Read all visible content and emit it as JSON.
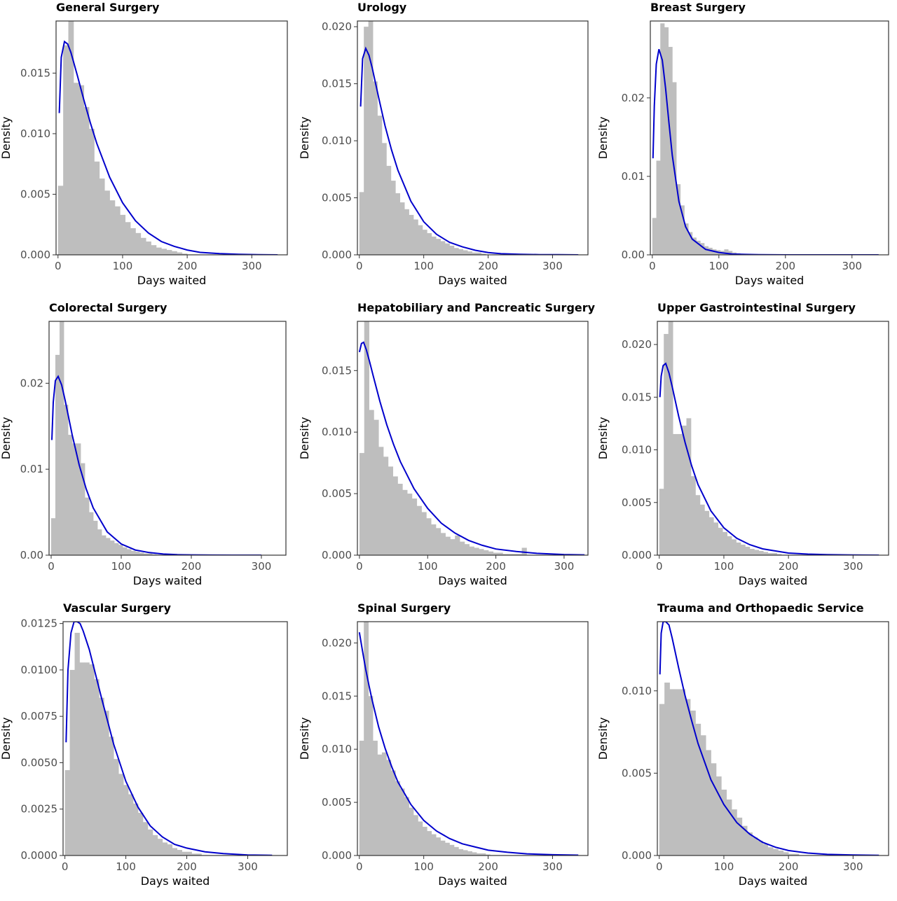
{
  "chart_data": [
    {
      "type": "histogram",
      "title": "General Surgery",
      "xlabel": "Days waited",
      "ylabel": "Density",
      "xlim": [
        -3,
        355
      ],
      "ylim": [
        0,
        0.0193
      ],
      "xticks": [
        0,
        100,
        200,
        300
      ],
      "yticks": [
        0.0,
        0.005,
        0.01,
        0.015
      ],
      "ytick_labels": [
        "0.000",
        "0.005",
        "0.010",
        "0.015"
      ],
      "bin_width": 8,
      "bin_start": 0,
      "histogram": [
        0.0057,
        0.0173,
        0.0195,
        0.0142,
        0.014,
        0.0122,
        0.0104,
        0.0077,
        0.0063,
        0.0053,
        0.0045,
        0.004,
        0.0033,
        0.0027,
        0.0022,
        0.0018,
        0.0014,
        0.0011,
        0.0008,
        0.0006,
        0.0005,
        0.0004,
        0.0003,
        0.0002,
        0.0001
      ],
      "fit_curve": {
        "x": [
          2,
          5,
          10,
          15,
          20,
          30,
          40,
          50,
          60,
          80,
          100,
          120,
          140,
          160,
          180,
          200,
          220,
          250,
          280,
          310,
          340
        ],
        "y": [
          0.0117,
          0.0163,
          0.0176,
          0.0174,
          0.0167,
          0.0148,
          0.0128,
          0.0109,
          0.0092,
          0.0064,
          0.0043,
          0.0028,
          0.0018,
          0.0011,
          0.0007,
          0.0004,
          0.0002,
          0.0001,
          4e-05,
          1e-05,
          0.0
        ]
      }
    },
    {
      "type": "histogram",
      "title": "Urology",
      "xlabel": "Days waited",
      "ylabel": "Density",
      "xlim": [
        -3,
        355
      ],
      "ylim": [
        0,
        0.0205
      ],
      "xticks": [
        0,
        100,
        200,
        300
      ],
      "yticks": [
        0.0,
        0.005,
        0.01,
        0.015,
        0.02
      ],
      "ytick_labels": [
        "0.000",
        "0.005",
        "0.010",
        "0.015",
        "0.020"
      ],
      "bin_width": 7,
      "bin_start": 0,
      "histogram": [
        0.0055,
        0.02,
        0.021,
        0.0152,
        0.0122,
        0.0098,
        0.0078,
        0.0065,
        0.0054,
        0.0046,
        0.004,
        0.0035,
        0.0031,
        0.0026,
        0.0022,
        0.0019,
        0.0016,
        0.0014,
        0.0012,
        0.001,
        0.0008,
        0.0006,
        0.0005,
        0.0004,
        0.0003,
        0.0002,
        0.0002,
        0.0001
      ],
      "fit_curve": {
        "x": [
          2,
          5,
          10,
          15,
          20,
          30,
          40,
          50,
          60,
          80,
          100,
          120,
          140,
          160,
          180,
          200,
          220,
          250,
          280,
          310,
          340
        ],
        "y": [
          0.013,
          0.0172,
          0.0181,
          0.0175,
          0.0164,
          0.0138,
          0.0113,
          0.0092,
          0.0074,
          0.0047,
          0.0029,
          0.0018,
          0.0011,
          0.0007,
          0.0004,
          0.0002,
          0.0001,
          5e-05,
          2e-05,
          1e-05,
          0.0
        ]
      }
    },
    {
      "type": "histogram",
      "title": "Breast Surgery",
      "xlabel": "Days waited",
      "ylabel": "Density",
      "xlim": [
        -3,
        355
      ],
      "ylim": [
        0,
        0.0298
      ],
      "xticks": [
        0,
        100,
        200,
        300
      ],
      "yticks": [
        0.0,
        0.01,
        0.02
      ],
      "ytick_labels": [
        "0.00",
        "0.01",
        "0.02"
      ],
      "bin_width": 6,
      "bin_start": 0,
      "histogram": [
        0.0047,
        0.012,
        0.0295,
        0.029,
        0.0265,
        0.022,
        0.009,
        0.0063,
        0.004,
        0.0029,
        0.0022,
        0.0018,
        0.0015,
        0.0011,
        0.0009,
        0.0007,
        0.0006,
        0.0005,
        0.0007,
        0.0005,
        0.0003,
        0.0002,
        0.0001
      ],
      "fit_curve": {
        "x": [
          1,
          3,
          6,
          10,
          15,
          20,
          25,
          30,
          40,
          50,
          60,
          80,
          100,
          120,
          140,
          160,
          200,
          250,
          300,
          340
        ],
        "y": [
          0.0123,
          0.019,
          0.0243,
          0.0262,
          0.0248,
          0.0212,
          0.0168,
          0.0127,
          0.0068,
          0.0036,
          0.002,
          0.0007,
          0.0003,
          0.0001,
          5e-05,
          2e-05,
          0.0,
          0.0,
          0.0,
          0.0
        ]
      }
    },
    {
      "type": "histogram",
      "title": "Colorectal Surgery",
      "xlabel": "Days waited",
      "ylabel": "Density",
      "xlim": [
        -3,
        335
      ],
      "ylim": [
        0,
        0.0272
      ],
      "xticks": [
        0,
        100,
        200,
        300
      ],
      "yticks": [
        0.0,
        0.01,
        0.02
      ],
      "ytick_labels": [
        "0.00",
        "0.01",
        "0.02"
      ],
      "bin_width": 6,
      "bin_start": 0,
      "histogram": [
        0.0043,
        0.0233,
        0.0272,
        0.0175,
        0.014,
        0.013,
        0.013,
        0.0107,
        0.0067,
        0.005,
        0.004,
        0.003,
        0.0023,
        0.002,
        0.0017,
        0.0014,
        0.0012,
        0.0009,
        0.0007,
        0.0005,
        0.0004,
        0.0003,
        0.0002,
        0.0002,
        0.0001
      ],
      "fit_curve": {
        "x": [
          1,
          3,
          6,
          10,
          15,
          20,
          30,
          40,
          50,
          60,
          80,
          100,
          120,
          140,
          160,
          180,
          200,
          230,
          260,
          300
        ],
        "y": [
          0.0134,
          0.0178,
          0.0203,
          0.0208,
          0.0198,
          0.018,
          0.014,
          0.0105,
          0.0077,
          0.0055,
          0.0027,
          0.0013,
          0.0006,
          0.0003,
          0.00013,
          6e-05,
          3e-05,
          1e-05,
          0.0,
          0.0
        ]
      }
    },
    {
      "type": "histogram",
      "title": "Hepatobiliary and Pancreatic Surgery",
      "xlabel": "Days waited",
      "ylabel": "Density",
      "xlim": [
        -3,
        335
      ],
      "ylim": [
        0,
        0.019
      ],
      "xticks": [
        0,
        100,
        200,
        300
      ],
      "yticks": [
        0.0,
        0.005,
        0.01,
        0.015
      ],
      "ytick_labels": [
        "0.000",
        "0.005",
        "0.010",
        "0.015"
      ],
      "bin_width": 7,
      "bin_start": 0,
      "histogram": [
        0.0083,
        0.019,
        0.0118,
        0.011,
        0.0088,
        0.008,
        0.0072,
        0.0064,
        0.0058,
        0.0053,
        0.005,
        0.0046,
        0.004,
        0.0035,
        0.003,
        0.0025,
        0.0022,
        0.0018,
        0.0015,
        0.0013,
        0.0016,
        0.0011,
        0.0009,
        0.0007,
        0.0006,
        0.0005,
        0.0004,
        0.0003,
        0.0002,
        0.0002,
        0.0001,
        0.0001,
        0.0001,
        0.0001,
        0.0006
      ],
      "fit_curve": {
        "x": [
          0,
          3,
          6,
          10,
          15,
          20,
          30,
          40,
          50,
          60,
          80,
          100,
          120,
          140,
          160,
          180,
          200,
          230,
          260,
          300,
          330
        ],
        "y": [
          0.0165,
          0.0172,
          0.0173,
          0.0167,
          0.0157,
          0.0146,
          0.0125,
          0.0106,
          0.009,
          0.0076,
          0.0054,
          0.0038,
          0.0026,
          0.0018,
          0.0012,
          0.0008,
          0.0005,
          0.0003,
          0.00015,
          5e-05,
          2e-05
        ]
      }
    },
    {
      "type": "histogram",
      "title": "Upper Gastrointestinal Surgery",
      "xlabel": "Days waited",
      "ylabel": "Density",
      "xlim": [
        -3,
        355
      ],
      "ylim": [
        0,
        0.0222
      ],
      "xticks": [
        0,
        100,
        200,
        300
      ],
      "yticks": [
        0.0,
        0.005,
        0.01,
        0.015,
        0.02
      ],
      "ytick_labels": [
        "0.000",
        "0.005",
        "0.010",
        "0.015",
        "0.020"
      ],
      "bin_width": 7,
      "bin_start": 0,
      "histogram": [
        0.0063,
        0.021,
        0.0225,
        0.0115,
        0.0115,
        0.0123,
        0.013,
        0.0075,
        0.0057,
        0.0048,
        0.0042,
        0.0036,
        0.0031,
        0.0026,
        0.0022,
        0.0018,
        0.0015,
        0.0012,
        0.001,
        0.0008,
        0.0006,
        0.0005,
        0.0004,
        0.0003,
        0.0002,
        0.0002,
        0.0001
      ],
      "fit_curve": {
        "x": [
          1,
          3,
          6,
          10,
          15,
          20,
          30,
          40,
          50,
          60,
          80,
          100,
          120,
          140,
          160,
          180,
          200,
          230,
          260,
          300,
          340
        ],
        "y": [
          0.015,
          0.017,
          0.018,
          0.0182,
          0.0173,
          0.016,
          0.0132,
          0.0107,
          0.0085,
          0.0067,
          0.0042,
          0.0026,
          0.0016,
          0.001,
          0.0006,
          0.0004,
          0.0002,
          0.0001,
          5e-05,
          2e-05,
          0.0
        ]
      }
    },
    {
      "type": "histogram",
      "title": "Vascular Surgery",
      "xlabel": "Days waited",
      "ylabel": "Density",
      "xlim": [
        -3,
        365
      ],
      "ylim": [
        0,
        0.0126
      ],
      "xticks": [
        0,
        100,
        200,
        300
      ],
      "yticks": [
        0.0,
        0.0025,
        0.005,
        0.0075,
        0.01,
        0.0125
      ],
      "ytick_labels": [
        "0.0000",
        "0.0025",
        "0.0050",
        "0.0075",
        "0.0100",
        "0.0125"
      ],
      "bin_width": 8,
      "bin_start": 0,
      "histogram": [
        0.0046,
        0.01,
        0.012,
        0.0104,
        0.0104,
        0.0103,
        0.0095,
        0.0085,
        0.0078,
        0.0064,
        0.0052,
        0.0044,
        0.0038,
        0.0033,
        0.0028,
        0.0023,
        0.0018,
        0.0014,
        0.0011,
        0.0009,
        0.0007,
        0.0006,
        0.0004,
        0.0003,
        0.0002,
        0.0002,
        0.0001,
        0.0001
      ],
      "fit_curve": {
        "x": [
          2,
          5,
          10,
          15,
          20,
          25,
          30,
          40,
          50,
          60,
          80,
          100,
          120,
          140,
          160,
          180,
          200,
          230,
          260,
          300,
          340
        ],
        "y": [
          0.0061,
          0.01,
          0.012,
          0.0126,
          0.0127,
          0.0125,
          0.0121,
          0.0111,
          0.0098,
          0.0085,
          0.006,
          0.004,
          0.0026,
          0.0016,
          0.001,
          0.0006,
          0.0004,
          0.0002,
          0.0001,
          3e-05,
          1e-05
        ]
      }
    },
    {
      "type": "histogram",
      "title": "Spinal Surgery",
      "xlabel": "Days waited",
      "ylabel": "Density",
      "xlim": [
        -3,
        355
      ],
      "ylim": [
        0,
        0.022
      ],
      "xticks": [
        0,
        100,
        200,
        300
      ],
      "yticks": [
        0.0,
        0.005,
        0.01,
        0.015,
        0.02
      ],
      "ytick_labels": [
        "0.000",
        "0.005",
        "0.010",
        "0.015",
        "0.020"
      ],
      "bin_width": 7,
      "bin_start": 0,
      "histogram": [
        0.0108,
        0.0222,
        0.015,
        0.0108,
        0.0095,
        0.0097,
        0.009,
        0.008,
        0.007,
        0.0063,
        0.0055,
        0.0045,
        0.0038,
        0.0032,
        0.0027,
        0.0023,
        0.002,
        0.0017,
        0.0014,
        0.0012,
        0.001,
        0.0008,
        0.0006,
        0.0005,
        0.0004,
        0.0003,
        0.0002,
        0.0002,
        0.0001
      ],
      "fit_curve": {
        "x": [
          0,
          5,
          10,
          15,
          20,
          30,
          40,
          50,
          60,
          80,
          100,
          120,
          140,
          160,
          180,
          200,
          230,
          260,
          300,
          340
        ],
        "y": [
          0.021,
          0.0192,
          0.0175,
          0.016,
          0.0146,
          0.0121,
          0.0101,
          0.0084,
          0.0069,
          0.0048,
          0.0033,
          0.0023,
          0.0016,
          0.0011,
          0.0008,
          0.0005,
          0.0003,
          0.00016,
          7e-05,
          3e-05
        ]
      }
    },
    {
      "type": "histogram",
      "title": "Trauma and Orthopaedic Service",
      "xlabel": "Days waited",
      "ylabel": "Density",
      "xlim": [
        -3,
        355
      ],
      "ylim": [
        0,
        0.0142
      ],
      "xticks": [
        0,
        100,
        200,
        300
      ],
      "yticks": [
        0.0,
        0.005,
        0.01
      ],
      "ytick_labels": [
        "0.000",
        "0.005",
        "0.010"
      ],
      "bin_width": 8,
      "bin_start": 0,
      "histogram": [
        0.0092,
        0.0105,
        0.0101,
        0.0101,
        0.0101,
        0.0095,
        0.0088,
        0.008,
        0.0073,
        0.0064,
        0.0056,
        0.0048,
        0.004,
        0.0034,
        0.0028,
        0.0023,
        0.0018,
        0.0014,
        0.0011,
        0.0009,
        0.0007,
        0.0005,
        0.0004,
        0.0003,
        0.0002,
        0.0001,
        0.0001
      ],
      "fit_curve": {
        "x": [
          1,
          3,
          6,
          10,
          15,
          20,
          30,
          40,
          50,
          60,
          80,
          100,
          120,
          140,
          160,
          180,
          200,
          230,
          260,
          300,
          340
        ],
        "y": [
          0.011,
          0.0135,
          0.0143,
          0.0145,
          0.014,
          0.0132,
          0.0114,
          0.0097,
          0.0082,
          0.0068,
          0.0046,
          0.0031,
          0.002,
          0.0013,
          0.0008,
          0.0005,
          0.0003,
          0.00015,
          7e-05,
          3e-05,
          1e-05
        ]
      }
    }
  ]
}
